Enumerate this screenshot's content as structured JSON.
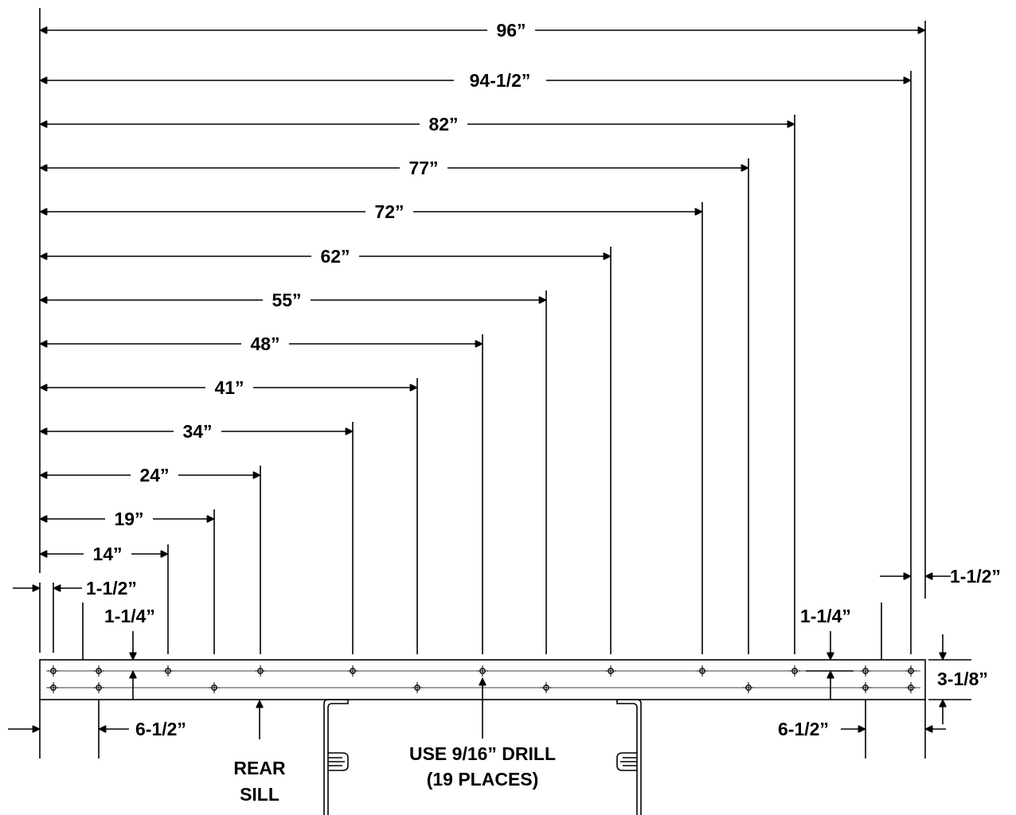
{
  "colors": {
    "ink": "#000000",
    "background": "#ffffff"
  },
  "dimensions_from_left_edge": [
    {
      "label": "96”"
    },
    {
      "label": "94-1/2”"
    },
    {
      "label": "82”"
    },
    {
      "label": "77”"
    },
    {
      "label": "72”"
    },
    {
      "label": "62”"
    },
    {
      "label": "55”"
    },
    {
      "label": "48”"
    },
    {
      "label": "41”"
    },
    {
      "label": "34”"
    },
    {
      "label": "24”"
    },
    {
      "label": "19”"
    },
    {
      "label": "14”"
    }
  ],
  "edge_offsets": {
    "left_top": "1-1/2”",
    "left_bottom": "6-1/2”",
    "right_top": "1-1/2”",
    "right_bottom": "6-1/2”"
  },
  "hole_row_spacing": {
    "left": "1-1/4”",
    "right": "1-1/4”"
  },
  "sill_height": "3-1/8”",
  "callouts": {
    "rear_sill": [
      "REAR",
      "SILL"
    ],
    "drill": [
      "USE 9/16” DRILL",
      "(19 PLACES)"
    ]
  }
}
